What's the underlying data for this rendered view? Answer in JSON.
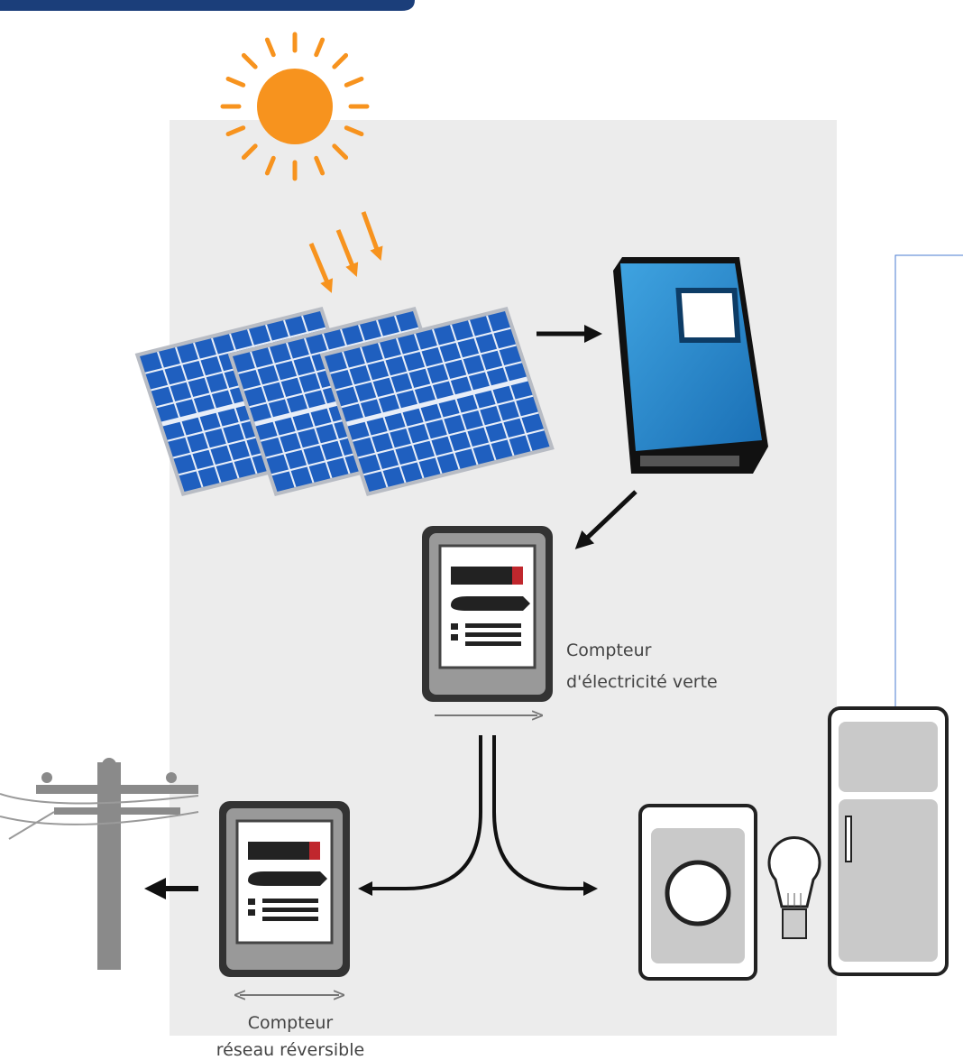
{
  "labels": {
    "green_meter": [
      "Compteur",
      "d'électricité verte"
    ],
    "grid_meter": [
      "Compteur",
      "réseau réversible"
    ]
  }
}
